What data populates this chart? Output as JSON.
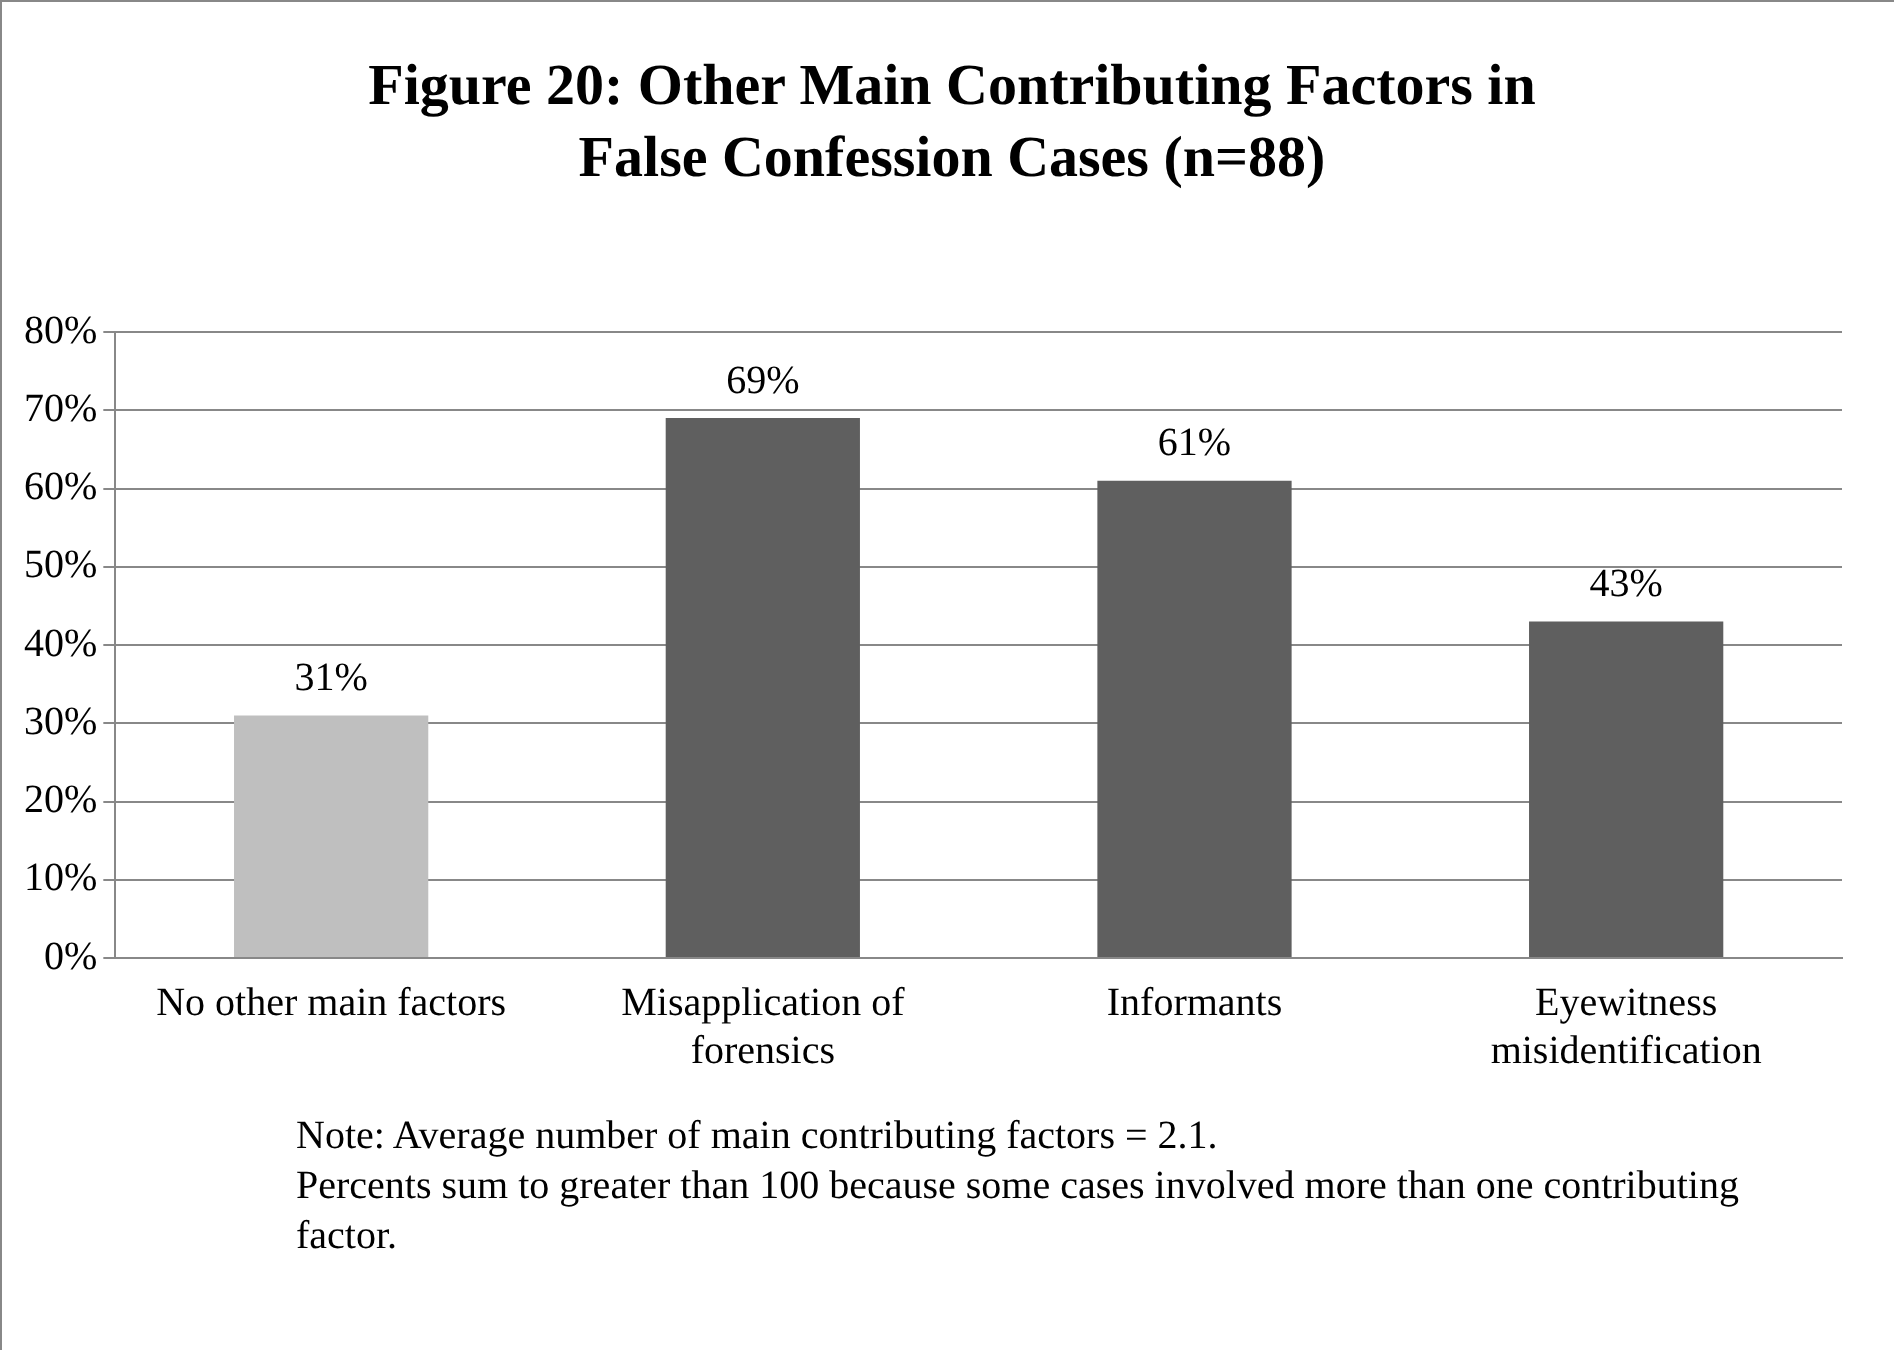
{
  "chart_data": {
    "type": "bar",
    "title": "Figure 20: Other Main Contributing Factors in False Confession Cases (n=88)",
    "categories": [
      "No other main factors",
      "Misapplication of forensics",
      "Informants",
      "Eyewitness misidentification"
    ],
    "values": [
      31,
      69,
      61,
      43
    ],
    "colors": [
      "#bfbfbf",
      "#5f5f5f",
      "#5f5f5f",
      "#5f5f5f"
    ],
    "ylim": [
      0,
      80
    ],
    "yticks": [
      {
        "value": 0,
        "label": "0%"
      },
      {
        "value": 10,
        "label": "10%"
      },
      {
        "value": 20,
        "label": "20%"
      },
      {
        "value": 30,
        "label": "30%"
      },
      {
        "value": 40,
        "label": "40%"
      },
      {
        "value": 50,
        "label": "50%"
      },
      {
        "value": 60,
        "label": "60%"
      },
      {
        "value": 70,
        "label": "70%"
      },
      {
        "value": 80,
        "label": "80%"
      }
    ],
    "value_labels": [
      "31%",
      "69%",
      "61%",
      "43%"
    ],
    "grid": "y",
    "legend": false,
    "annotations": [
      "Note: Average number of main contributing factors = 2.1.",
      "Percents sum to greater than 100 because some cases involved more than one contributing factor."
    ]
  }
}
